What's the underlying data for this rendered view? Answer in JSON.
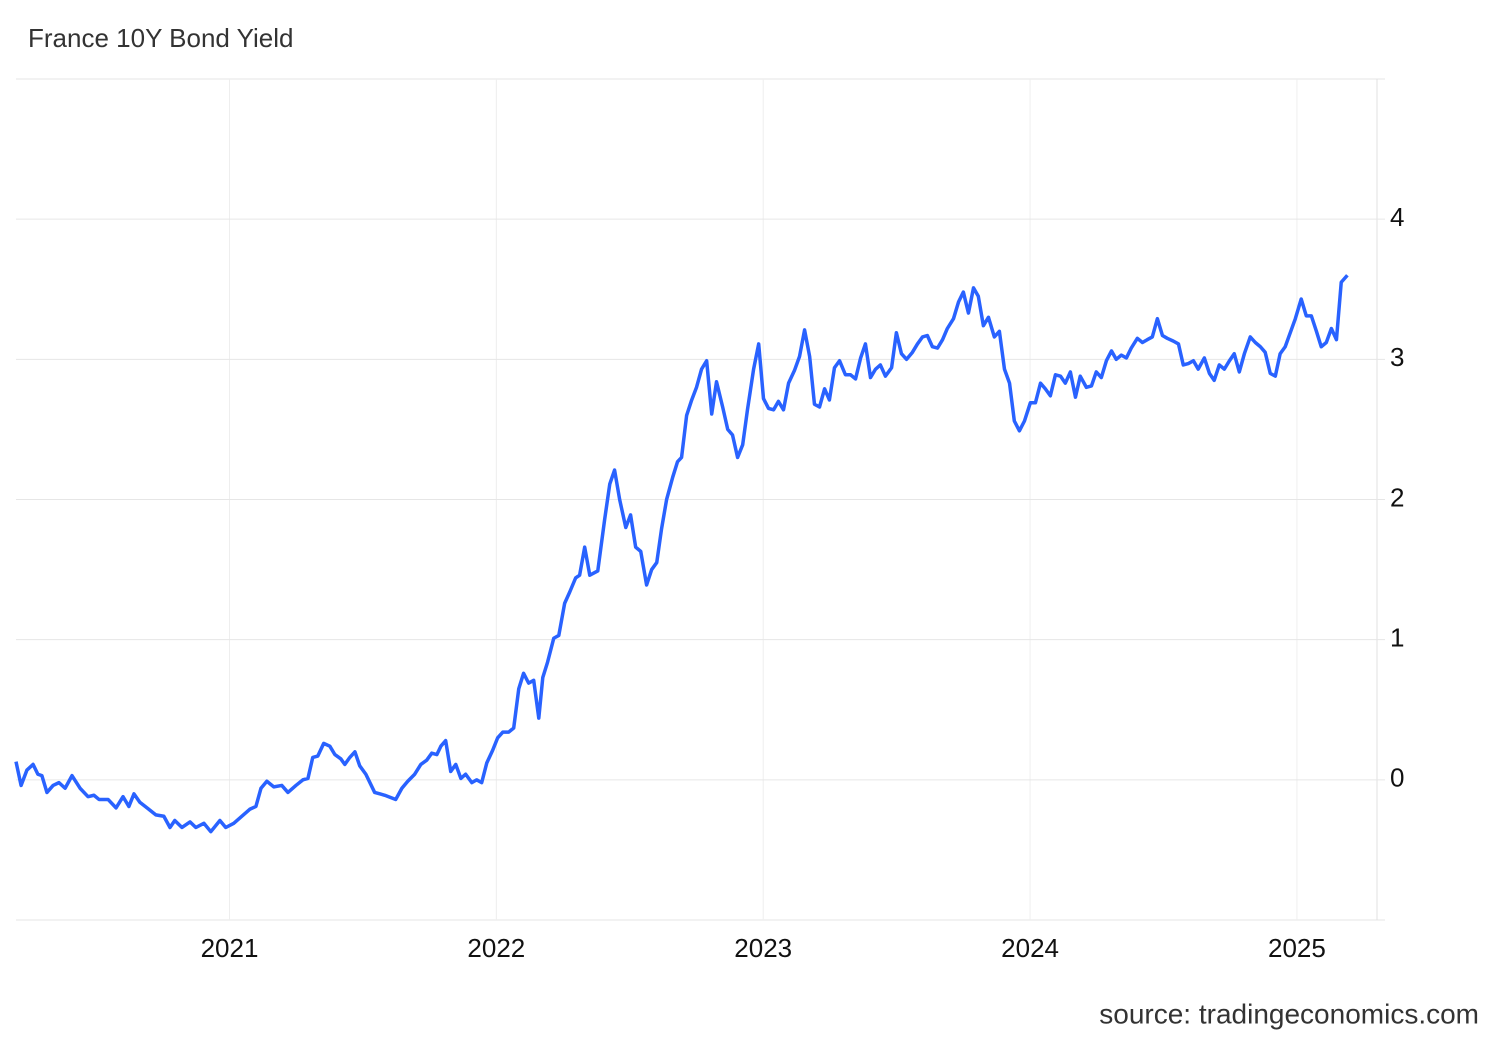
{
  "chart_data": {
    "type": "line",
    "title": "France 10Y Bond Yield",
    "source": "source: tradingeconomics.com",
    "xlim": [
      2020.2,
      2025.3
    ],
    "xticks": [
      2021,
      2022,
      2023,
      2024,
      2025
    ],
    "ylim": [
      -1,
      5
    ],
    "yticks": [
      0,
      1,
      2,
      3,
      4
    ],
    "grid": true,
    "y_axis_side": "right",
    "x": [
      2020.2,
      2020.219,
      2020.241,
      2020.264,
      2020.282,
      2020.297,
      2020.316,
      2020.339,
      2020.361,
      2020.384,
      2020.41,
      2020.44,
      2020.47,
      2020.492,
      2020.511,
      2020.545,
      2020.575,
      2020.601,
      2020.623,
      2020.642,
      2020.664,
      2020.691,
      2020.724,
      2020.754,
      2020.777,
      2020.795,
      2020.822,
      2020.852,
      2020.874,
      2020.904,
      2020.93,
      2020.964,
      2020.986,
      2021.016,
      2021.046,
      2021.076,
      2021.099,
      2021.118,
      2021.14,
      2021.166,
      2021.196,
      2021.219,
      2021.249,
      2021.275,
      2021.294,
      2021.312,
      2021.331,
      2021.353,
      2021.376,
      2021.395,
      2021.417,
      2021.432,
      2021.451,
      2021.47,
      2021.488,
      2021.511,
      2021.544,
      2021.582,
      2021.623,
      2021.646,
      2021.668,
      2021.694,
      2021.717,
      2021.739,
      2021.758,
      2021.777,
      2021.792,
      2021.81,
      2021.829,
      2021.848,
      2021.867,
      2021.885,
      2021.908,
      2021.926,
      2021.945,
      2021.964,
      2021.986,
      2022.005,
      2022.024,
      2022.046,
      2022.065,
      2022.084,
      2022.102,
      2022.121,
      2022.14,
      2022.159,
      2022.174,
      2022.192,
      2022.215,
      2022.234,
      2022.256,
      2022.275,
      2022.297,
      2022.312,
      2022.331,
      2022.35,
      2022.38,
      2022.406,
      2022.425,
      2022.443,
      2022.462,
      2022.485,
      2022.503,
      2022.522,
      2022.541,
      2022.563,
      2022.582,
      2022.601,
      2022.619,
      2022.638,
      2022.661,
      2022.679,
      2022.694,
      2022.713,
      2022.732,
      2022.75,
      2022.769,
      2022.788,
      2022.807,
      2022.825,
      2022.848,
      2022.867,
      2022.885,
      2022.904,
      2022.923,
      2022.941,
      2022.964,
      2022.983,
      2023.001,
      2023.02,
      2023.039,
      2023.057,
      2023.076,
      2023.095,
      2023.117,
      2023.136,
      2023.155,
      2023.174,
      2023.192,
      2023.211,
      2023.23,
      2023.248,
      2023.267,
      2023.286,
      2023.308,
      2023.327,
      2023.346,
      2023.365,
      2023.383,
      2023.402,
      2023.421,
      2023.439,
      2023.458,
      2023.481,
      2023.499,
      2023.518,
      2023.537,
      2023.559,
      2023.578,
      2023.597,
      2023.615,
      2023.634,
      2023.653,
      2023.672,
      2023.69,
      2023.713,
      2023.732,
      2023.75,
      2023.769,
      2023.788,
      2023.806,
      2023.825,
      2023.844,
      2023.866,
      2023.885,
      2023.904,
      2023.923,
      2023.941,
      2023.96,
      2023.979,
      2024.001,
      2024.02,
      2024.039,
      2024.057,
      2024.076,
      2024.095,
      2024.114,
      2024.132,
      2024.151,
      2024.17,
      2024.188,
      2024.211,
      2024.23,
      2024.248,
      2024.267,
      2024.286,
      2024.305,
      2024.323,
      2024.342,
      2024.361,
      2024.379,
      2024.402,
      2024.421,
      2024.439,
      2024.458,
      2024.477,
      2024.496,
      2024.514,
      2024.537,
      2024.556,
      2024.574,
      2024.593,
      2024.612,
      2024.63,
      2024.653,
      2024.672,
      2024.69,
      2024.709,
      2024.728,
      2024.747,
      2024.765,
      2024.784,
      2024.803,
      2024.825,
      2024.844,
      2024.863,
      2024.881,
      2024.9,
      2024.919,
      2024.937,
      2024.956,
      2024.975,
      2024.994,
      2025.016,
      2025.035,
      2025.054,
      2025.073,
      2025.091,
      2025.11,
      2025.129,
      2025.148,
      2025.166,
      2025.189
    ],
    "series": [
      {
        "color": "#2962ff",
        "values": [
          0.13,
          -0.04,
          0.07,
          0.11,
          0.04,
          0.03,
          -0.09,
          -0.04,
          -0.02,
          -0.06,
          0.03,
          -0.06,
          -0.12,
          -0.11,
          -0.14,
          -0.14,
          -0.2,
          -0.12,
          -0.19,
          -0.1,
          -0.16,
          -0.2,
          -0.25,
          -0.26,
          -0.34,
          -0.29,
          -0.34,
          -0.3,
          -0.34,
          -0.31,
          -0.37,
          -0.29,
          -0.34,
          -0.31,
          -0.26,
          -0.21,
          -0.19,
          -0.06,
          -0.01,
          -0.05,
          -0.04,
          -0.09,
          -0.04,
          0,
          0.01,
          0.16,
          0.17,
          0.26,
          0.24,
          0.18,
          0.15,
          0.11,
          0.16,
          0.2,
          0.1,
          0.04,
          -0.09,
          -0.11,
          -0.14,
          -0.06,
          -0.01,
          0.04,
          0.11,
          0.14,
          0.19,
          0.18,
          0.24,
          0.28,
          0.06,
          0.11,
          0.01,
          0.04,
          -0.02,
          0,
          -0.02,
          0.12,
          0.21,
          0.3,
          0.34,
          0.34,
          0.37,
          0.65,
          0.76,
          0.69,
          0.71,
          0.44,
          0.73,
          0.84,
          1.01,
          1.03,
          1.26,
          1.34,
          1.44,
          1.46,
          1.66,
          1.46,
          1.49,
          1.86,
          2.11,
          2.21,
          2.0,
          1.8,
          1.89,
          1.66,
          1.63,
          1.39,
          1.5,
          1.55,
          1.79,
          2.0,
          2.16,
          2.27,
          2.3,
          2.6,
          2.71,
          2.8,
          2.93,
          2.99,
          2.61,
          2.84,
          2.66,
          2.5,
          2.46,
          2.3,
          2.39,
          2.64,
          2.93,
          3.11,
          2.72,
          2.65,
          2.64,
          2.7,
          2.64,
          2.83,
          2.92,
          3.02,
          3.21,
          3.02,
          2.68,
          2.66,
          2.79,
          2.71,
          2.94,
          2.99,
          2.89,
          2.89,
          2.86,
          3.01,
          3.11,
          2.87,
          2.93,
          2.96,
          2.88,
          2.94,
          3.19,
          3.04,
          3.0,
          3.05,
          3.11,
          3.16,
          3.17,
          3.09,
          3.08,
          3.14,
          3.22,
          3.29,
          3.41,
          3.48,
          3.33,
          3.51,
          3.45,
          3.24,
          3.3,
          3.16,
          3.2,
          2.93,
          2.83,
          2.56,
          2.49,
          2.56,
          2.69,
          2.69,
          2.83,
          2.79,
          2.74,
          2.89,
          2.88,
          2.83,
          2.91,
          2.73,
          2.88,
          2.8,
          2.81,
          2.91,
          2.87,
          2.99,
          3.06,
          3.0,
          3.03,
          3.01,
          3.08,
          3.15,
          3.12,
          3.14,
          3.16,
          3.29,
          3.17,
          3.15,
          3.13,
          3.11,
          2.96,
          2.97,
          2.99,
          2.93,
          3.01,
          2.9,
          2.85,
          2.96,
          2.93,
          2.99,
          3.04,
          2.91,
          3.04,
          3.16,
          3.12,
          3.09,
          3.05,
          2.9,
          2.88,
          3.04,
          3.09,
          3.19,
          3.29,
          3.43,
          3.31,
          3.31,
          3.2,
          3.09,
          3.12,
          3.22,
          3.14,
          3.55,
          3.6
        ]
      }
    ]
  }
}
